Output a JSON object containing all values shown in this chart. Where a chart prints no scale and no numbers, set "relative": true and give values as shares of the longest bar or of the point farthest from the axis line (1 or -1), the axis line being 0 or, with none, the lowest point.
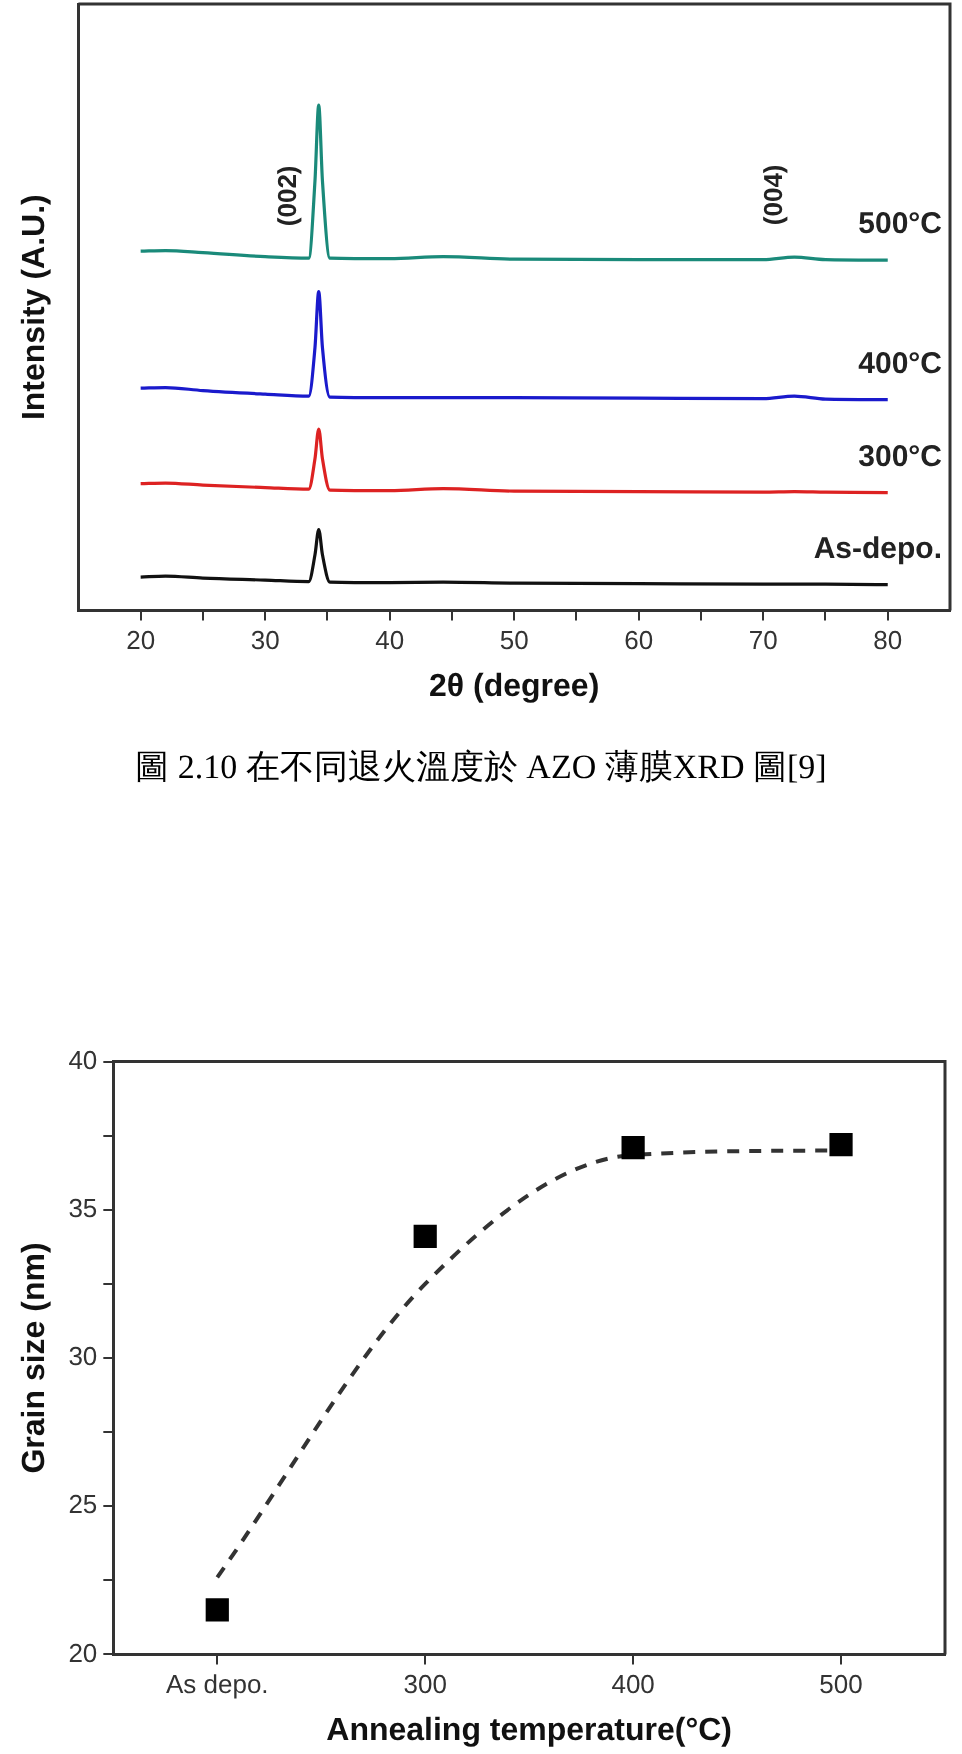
{
  "chart_data": [
    {
      "type": "line",
      "relative": true,
      "xlabel": "2θ (degree)",
      "ylabel": "Intensity (A.U.)",
      "xlim": [
        15,
        85
      ],
      "xticks": [
        20,
        {
          "value": 25,
          "label": null
        },
        30,
        {
          "value": 35,
          "label": null
        },
        40,
        {
          "value": 45,
          "label": null
        },
        50,
        {
          "value": 55,
          "label": null
        },
        60,
        {
          "value": 65,
          "label": null
        },
        70,
        {
          "value": 75,
          "label": null
        },
        80
      ],
      "tick_labels": "x",
      "grid": false,
      "legend": false,
      "marker": "none",
      "x": [
        20,
        22,
        25,
        30,
        33.5,
        34.0,
        34.3,
        34.6,
        35.2,
        40,
        44.3,
        50,
        60,
        70,
        72.5,
        75,
        80
      ],
      "series": [
        {
          "name": "As-depo.",
          "color": "#111111",
          "values": [
            0.066,
            0.068,
            0.064,
            0.06,
            0.057,
            0.11,
            0.16,
            0.11,
            0.056,
            0.055,
            0.056,
            0.054,
            0.053,
            0.052,
            0.052,
            0.052,
            0.051
          ]
        },
        {
          "name": "300°C",
          "color": "#dd2222",
          "values": [
            0.251,
            0.252,
            0.248,
            0.243,
            0.24,
            0.3,
            0.359,
            0.3,
            0.238,
            0.237,
            0.241,
            0.236,
            0.235,
            0.234,
            0.235,
            0.234,
            0.233
          ]
        },
        {
          "name": "400°C",
          "color": "#1a1acc",
          "values": [
            0.44,
            0.441,
            0.435,
            0.428,
            0.424,
            0.52,
            0.631,
            0.52,
            0.422,
            0.421,
            0.421,
            0.421,
            0.42,
            0.419,
            0.424,
            0.418,
            0.417
          ]
        },
        {
          "name": "500°C",
          "color": "#1a8a7a",
          "values": [
            0.711,
            0.712,
            0.708,
            0.7,
            0.697,
            0.85,
            1,
            0.85,
            0.697,
            0.696,
            0.7,
            0.695,
            0.694,
            0.694,
            0.699,
            0.694,
            0.693
          ]
        }
      ],
      "annotations": [
        {
          "text": "(002)",
          "x": 33.5,
          "y": 0.697
        },
        {
          "text": "(004)",
          "x": 72.5,
          "y": 0.699
        },
        "圖 2.10  在不同退火溫度於 AZO 薄膜XRD 圖[9]"
      ]
    },
    {
      "type": "scatter",
      "xlabel": "Annealing temperature(°C)",
      "ylabel": "Grain size (nm)",
      "categories": [
        "As depo.",
        "300",
        "400",
        "500"
      ],
      "ylim": [
        20,
        40
      ],
      "yticks": [
        20,
        {
          "value": 22.5,
          "label": null
        },
        25,
        {
          "value": 27.5,
          "label": null
        },
        30,
        {
          "value": 32.5,
          "label": null
        },
        35,
        {
          "value": 37.5,
          "label": null
        },
        40
      ],
      "grid": false,
      "legend": false,
      "marker": "square",
      "series": [
        {
          "type": "line",
          "color": "#333333",
          "marker": "none",
          "line_style": "dashed",
          "values": [
            22.6,
            32.5,
            36.85,
            37.0
          ]
        },
        {
          "color": "#000000",
          "values": [
            21.5,
            34.1,
            37.1,
            37.2
          ]
        }
      ]
    }
  ]
}
